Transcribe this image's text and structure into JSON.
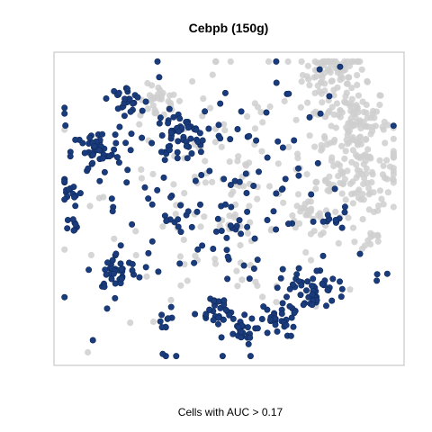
{
  "chart_data": {
    "type": "scatter",
    "title": "Cebpb (150g)",
    "xlabel": "Cells with AUC > 0.17",
    "ylabel": "",
    "grid": false,
    "legend": "none",
    "axes": "none (box only)",
    "colors": {
      "above_threshold": "#1a3c7d",
      "below_threshold": "#cfcfcf",
      "frame": "#bdbdbd"
    },
    "clusters": [
      {
        "group": "below_threshold",
        "x": 0.8,
        "y": 0.93,
        "spread": 0.045,
        "count": 80
      },
      {
        "group": "below_threshold",
        "x": 0.3,
        "y": 0.84,
        "spread": 0.028,
        "count": 30
      },
      {
        "group": "below_threshold",
        "x": 0.85,
        "y": 0.78,
        "spread": 0.055,
        "count": 90
      },
      {
        "group": "below_threshold",
        "x": 0.88,
        "y": 0.61,
        "spread": 0.065,
        "count": 110
      },
      {
        "group": "below_threshold",
        "x": 0.72,
        "y": 0.48,
        "spread": 0.022,
        "count": 18
      },
      {
        "group": "below_threshold",
        "x": 0.91,
        "y": 0.4,
        "spread": 0.015,
        "count": 10
      },
      {
        "group": "below_threshold",
        "x": 0.55,
        "y": 0.55,
        "spread": 0.2,
        "count": 170
      },
      {
        "group": "above_threshold",
        "x": 0.2,
        "y": 0.85,
        "spread": 0.022,
        "count": 25
      },
      {
        "group": "above_threshold",
        "x": 0.36,
        "y": 0.74,
        "spread": 0.035,
        "count": 45
      },
      {
        "group": "above_threshold",
        "x": 0.12,
        "y": 0.68,
        "spread": 0.035,
        "count": 45
      },
      {
        "group": "above_threshold",
        "x": 0.05,
        "y": 0.55,
        "spread": 0.015,
        "count": 10
      },
      {
        "group": "above_threshold",
        "x": 0.06,
        "y": 0.45,
        "spread": 0.013,
        "count": 8
      },
      {
        "group": "above_threshold",
        "x": 0.18,
        "y": 0.3,
        "spread": 0.03,
        "count": 35
      },
      {
        "group": "above_threshold",
        "x": 0.74,
        "y": 0.24,
        "spread": 0.035,
        "count": 45
      },
      {
        "group": "above_threshold",
        "x": 0.46,
        "y": 0.18,
        "spread": 0.025,
        "count": 25
      },
      {
        "group": "above_threshold",
        "x": 0.53,
        "y": 0.11,
        "spread": 0.022,
        "count": 25
      },
      {
        "group": "above_threshold",
        "x": 0.64,
        "y": 0.14,
        "spread": 0.025,
        "count": 25
      },
      {
        "group": "above_threshold",
        "x": 0.31,
        "y": 0.14,
        "spread": 0.012,
        "count": 8
      },
      {
        "group": "above_threshold",
        "x": 0.8,
        "y": 0.46,
        "spread": 0.016,
        "count": 8
      },
      {
        "group": "above_threshold",
        "x": 0.45,
        "y": 0.5,
        "spread": 0.22,
        "count": 180
      }
    ]
  }
}
